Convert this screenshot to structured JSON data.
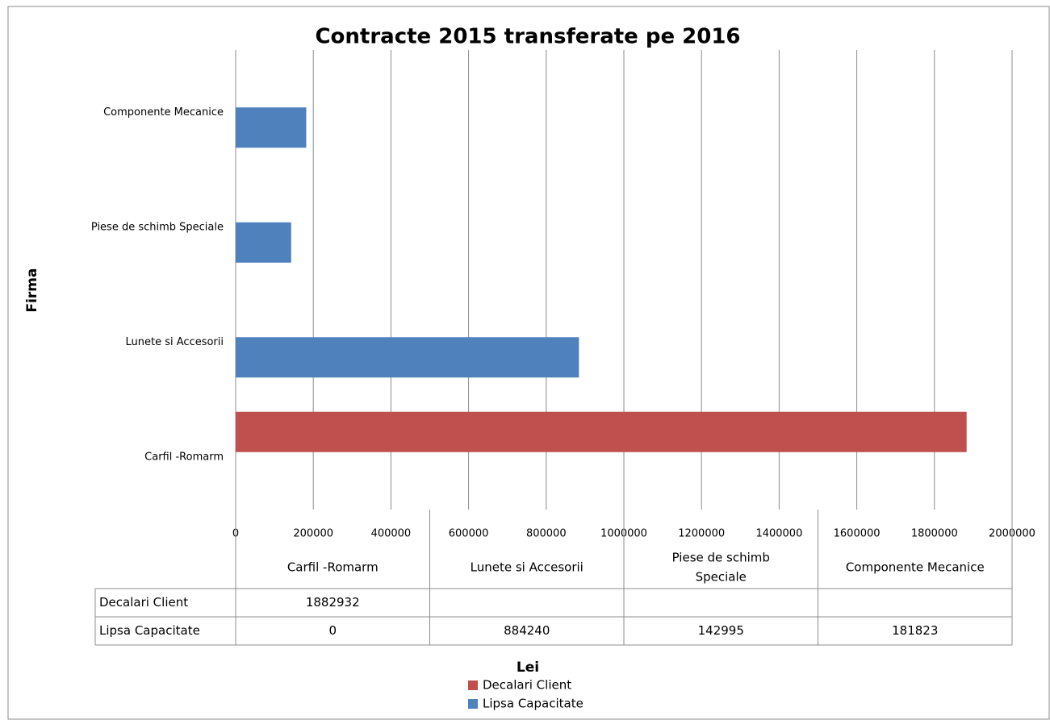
{
  "chart_data": {
    "type": "bar",
    "orientation": "horizontal",
    "title": "Contracte 2015 transferate pe 2016",
    "x_label": "Lei",
    "y_label": "Firma",
    "categories": [
      "Carfil -Romarm",
      "Lunete si Accesorii",
      "Piese de schimb Speciale",
      "Componente Mecanice"
    ],
    "series": [
      {
        "name": "Decalari Client",
        "color": "#c0504d",
        "values": [
          1882932,
          null,
          null,
          null
        ]
      },
      {
        "name": "Lipsa Capacitate",
        "color": "#4f81bd",
        "values": [
          0,
          884240,
          142995,
          181823
        ]
      }
    ],
    "table_categories": [
      "Carfil -Romarm",
      "Lunete si Accesorii",
      "Piese de schimb\nSpeciale",
      "Componente Mecanice"
    ],
    "xlim": [
      0,
      2000000
    ],
    "xticks": [
      0,
      200000,
      400000,
      600000,
      800000,
      1000000,
      1200000,
      1400000,
      1600000,
      1800000,
      2000000
    ],
    "grid": true
  }
}
